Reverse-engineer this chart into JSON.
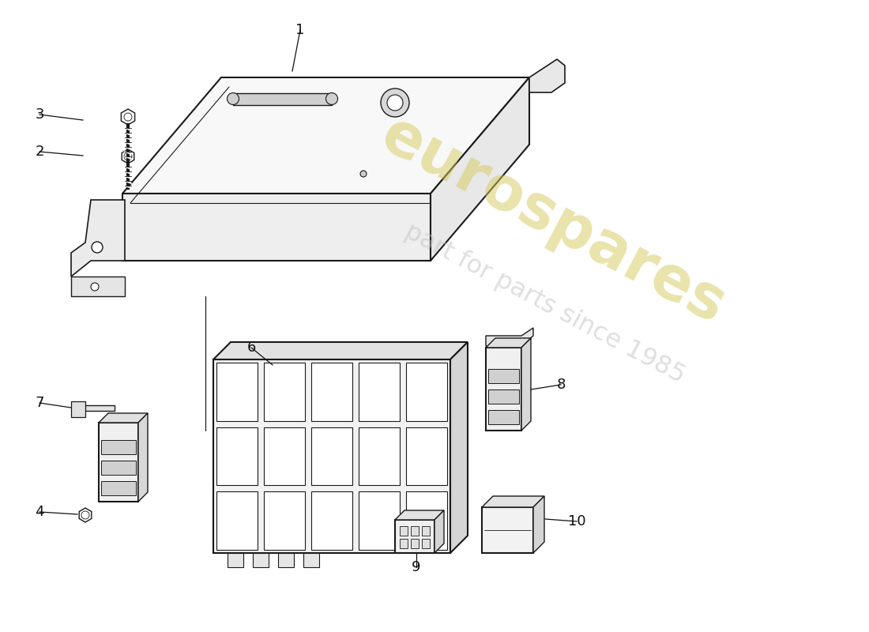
{
  "background_color": "#ffffff",
  "line_color": "#1a1a1a",
  "watermark_text": "eurospares",
  "watermark_subtext": "part for parts since 1985",
  "watermark_color": "#d4c85a",
  "watermark_subcolor": "#c8c8c8"
}
